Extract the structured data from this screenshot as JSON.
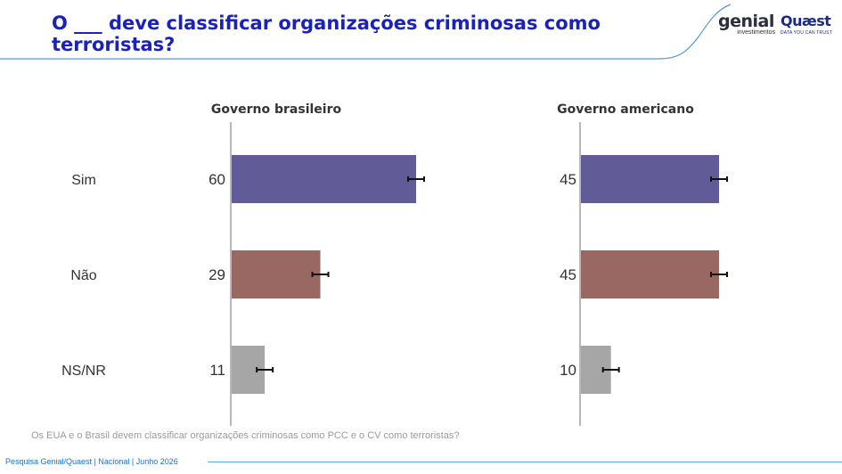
{
  "title": "O ___ deve classificar organizações criminosas como terroristas?",
  "logos": {
    "genial": "genial",
    "genial_sub": "investimentos",
    "quaest": "Quæst",
    "quaest_sub": "DATA YOU CAN TRUST"
  },
  "note": "Os EUA e o Brasil devem classificar organizações criminosas como PCC e o CV como terroristas?",
  "footer": "Pesquisa Genial/Quaest | Nacional | Junho 2026",
  "chart_data": {
    "type": "bar",
    "orientation": "horizontal",
    "categories": [
      "Sim",
      "Não",
      "NS/NR"
    ],
    "panels": [
      {
        "title": "Governo brasileiro",
        "values": [
          60,
          29,
          11
        ]
      },
      {
        "title": "Governo americano",
        "values": [
          45,
          45,
          10
        ]
      }
    ],
    "error_bars": true,
    "colors": [
      "#615b98",
      "#9a6863",
      "#a6a6a6"
    ],
    "axis_color": "#b8b8b8"
  }
}
